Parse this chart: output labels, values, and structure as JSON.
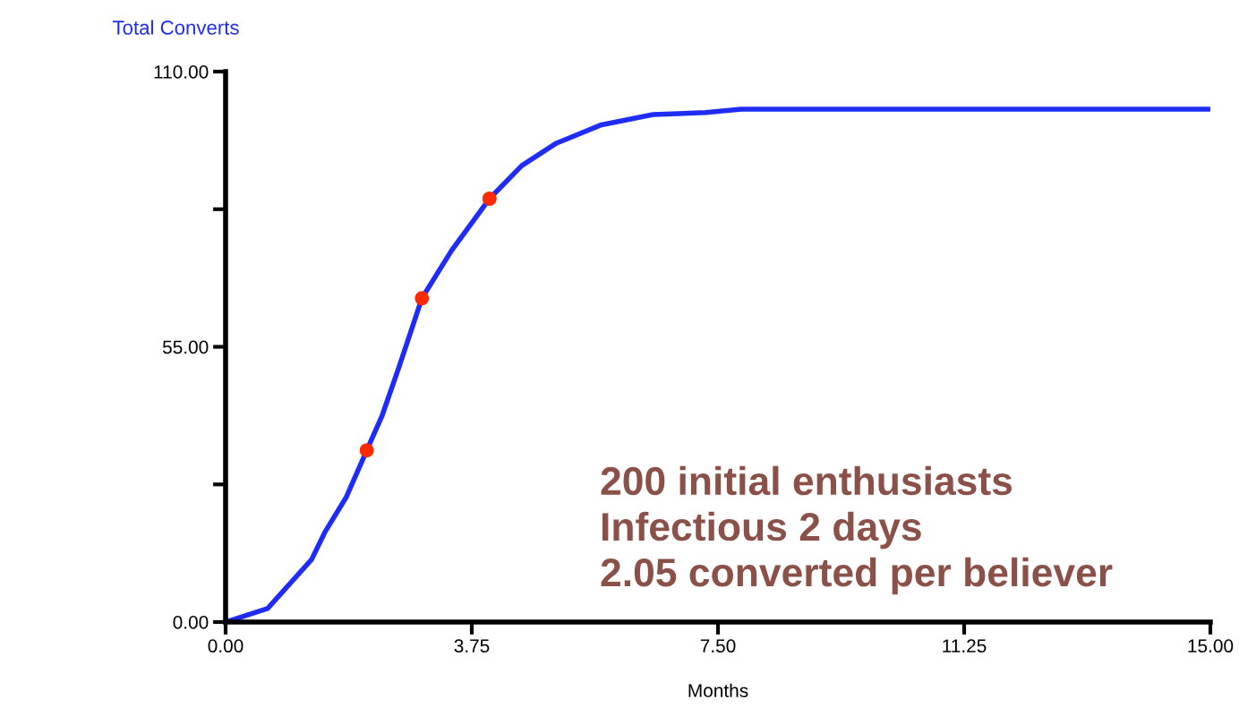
{
  "chart_data": {
    "type": "line",
    "ylabel": "Total Converts",
    "xlabel": "Months",
    "xlim": [
      0,
      15
    ],
    "ylim": [
      0,
      110
    ],
    "xticks": [
      {
        "value": 0,
        "label": "0.00"
      },
      {
        "value": 3.75,
        "label": "3.75"
      },
      {
        "value": 7.5,
        "label": "7.50"
      },
      {
        "value": 11.25,
        "label": "11.25"
      },
      {
        "value": 15,
        "label": "15.00"
      }
    ],
    "yticks": [
      {
        "value": 0,
        "label": "0.00"
      },
      {
        "value": 27.5,
        "label": null
      },
      {
        "value": 55,
        "label": "55.00"
      },
      {
        "value": 82.5,
        "label": null
      },
      {
        "value": 110,
        "label": "110.00"
      }
    ],
    "grid": false,
    "series": [
      {
        "color": "#1f2cf5",
        "marker": "none",
        "x": [
          0,
          0.64,
          1.31,
          1.51,
          1.84,
          2.15,
          2.38,
          2.64,
          2.99,
          3.44,
          4.02,
          4.51,
          5.04,
          5.71,
          6.51,
          7.31,
          7.85,
          15
        ],
        "values": [
          0,
          2.7,
          12.5,
          17.9,
          25,
          34.3,
          41.1,
          50.9,
          64.7,
          74.2,
          84.6,
          91.2,
          95.7,
          99.3,
          101.4,
          101.8,
          102.5,
          102.5
        ]
      },
      {
        "type": "scatter",
        "color": "#ff2a00",
        "marker": "circle",
        "x": [
          2.15,
          2.99,
          4.02
        ],
        "values": [
          34.3,
          64.7,
          84.6
        ]
      }
    ],
    "annotations": [
      "200 initial enthusiasts\nInfectious 2 days\n2.05 converted per believer"
    ]
  }
}
